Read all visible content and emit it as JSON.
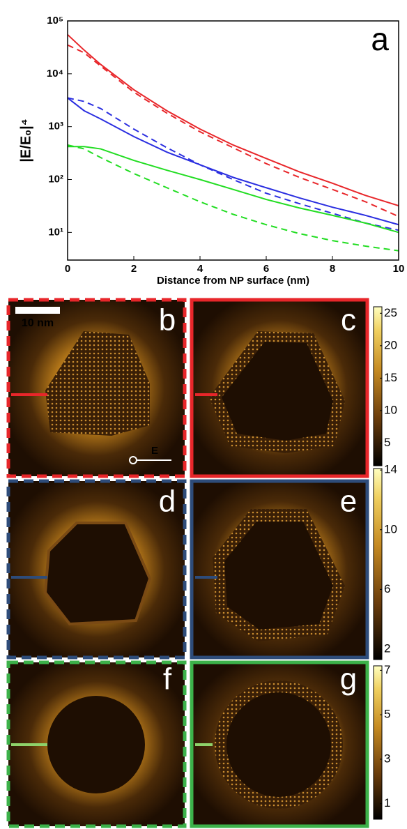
{
  "chart_data": {
    "type": "line",
    "panel_label": "a",
    "x_label": "Distance from NP surface (nm)",
    "y_label": "|E/E₀|⁴",
    "x": [
      0,
      0.5,
      1,
      2,
      3,
      4,
      5,
      6,
      7,
      8,
      9,
      10
    ],
    "xlim": [
      0,
      10
    ],
    "xticks": [
      0,
      2,
      4,
      6,
      8,
      10
    ],
    "ylim": [
      3,
      100000
    ],
    "log_y": true,
    "yticks": [
      {
        "value": 10,
        "label": "10¹"
      },
      {
        "value": 100,
        "label": "10²"
      },
      {
        "value": 1000,
        "label": "10³"
      },
      {
        "value": 10000,
        "label": "10⁴"
      },
      {
        "value": 100000,
        "label": "10⁵"
      }
    ],
    "series": [
      {
        "color": "#e8262a",
        "dashed": false,
        "values": [
          55000,
          28000,
          15000,
          5000,
          2000,
          900,
          450,
          250,
          140,
          85,
          50,
          32
        ]
      },
      {
        "color": "#e8262a",
        "dashed": true,
        "values": [
          35000,
          25000,
          14000,
          4500,
          1800,
          800,
          400,
          200,
          110,
          65,
          38,
          20
        ]
      },
      {
        "color": "#2a2ee0",
        "dashed": false,
        "values": [
          3500,
          2000,
          1400,
          650,
          330,
          190,
          110,
          70,
          45,
          30,
          21,
          14
        ]
      },
      {
        "color": "#2a2ee0",
        "dashed": true,
        "values": [
          3500,
          3000,
          2200,
          900,
          400,
          190,
          100,
          55,
          35,
          23,
          15,
          11
        ]
      },
      {
        "color": "#22dd22",
        "dashed": false,
        "values": [
          420,
          420,
          380,
          230,
          150,
          100,
          65,
          42,
          29,
          21,
          15,
          10
        ]
      },
      {
        "color": "#22dd22",
        "dashed": true,
        "values": [
          450,
          380,
          260,
          130,
          70,
          38,
          22,
          14,
          9.5,
          7,
          5.5,
          4.5
        ]
      }
    ]
  },
  "panels": {
    "labels": [
      "b",
      "c",
      "d",
      "e",
      "f",
      "g"
    ],
    "scale_bar": "10 nm",
    "field": "E",
    "colorbars": [
      {
        "clim": [
          1.5,
          26
        ],
        "ticks": [
          5,
          10,
          15,
          20,
          25
        ]
      },
      {
        "clim": [
          1.3,
          14.1
        ],
        "ticks": [
          2,
          6,
          10,
          14
        ]
      },
      {
        "clim": [
          0.3,
          7.2
        ],
        "ticks": [
          1,
          3,
          5,
          7
        ]
      }
    ]
  }
}
